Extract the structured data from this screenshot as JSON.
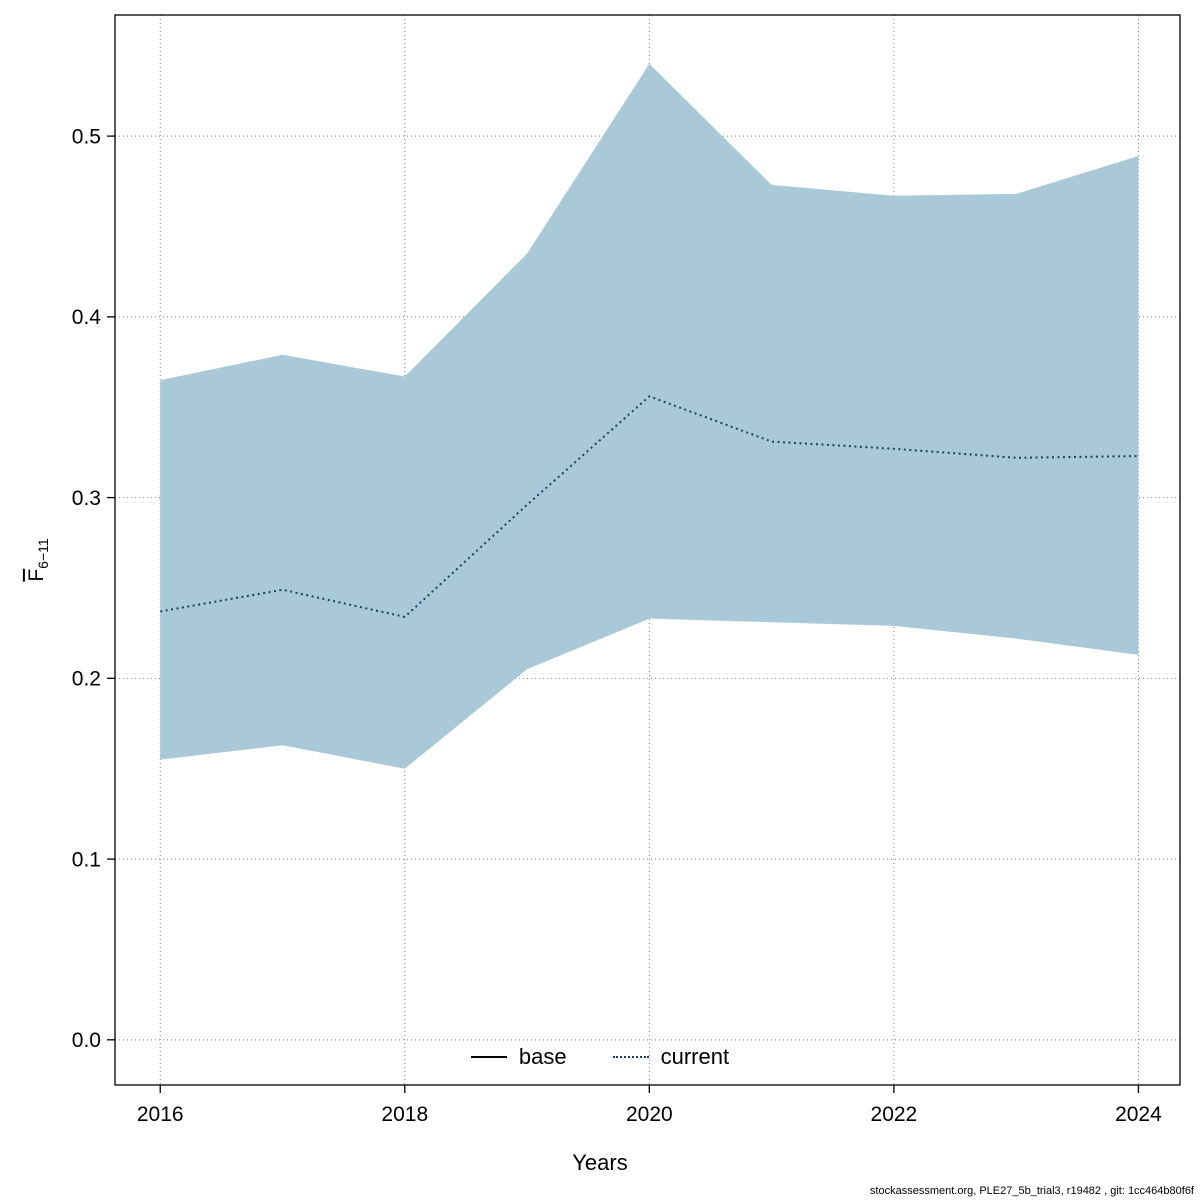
{
  "footer": {
    "source": "stockassessment.org, PLE27_5b_trial3, r19482 , git: 1cc464b80f6f"
  },
  "legend": {
    "items": [
      {
        "label": "base",
        "style": "solid",
        "color": "#000000"
      },
      {
        "label": "current",
        "style": "dotted",
        "color": "#11455e"
      }
    ]
  },
  "chart_data": {
    "type": "area",
    "title": "",
    "xlabel": "Years",
    "ylabel": {
      "base": "F",
      "subscript": "6−11",
      "overline": true
    },
    "x": [
      2016,
      2017,
      2018,
      2019,
      2020,
      2021,
      2022,
      2023,
      2024
    ],
    "series": [
      {
        "name": "current",
        "role": "center-line",
        "line_style": "dotted",
        "color": "#11455e",
        "values": [
          0.237,
          0.249,
          0.234,
          0.296,
          0.356,
          0.331,
          0.327,
          0.322,
          0.323
        ]
      }
    ],
    "band": {
      "name": "confidence-interval",
      "fill": "#a9c9d9",
      "upper": [
        0.365,
        0.379,
        0.367,
        0.435,
        0.54,
        0.473,
        0.467,
        0.468,
        0.489
      ],
      "lower": [
        0.155,
        0.163,
        0.15,
        0.205,
        0.233,
        0.231,
        0.229,
        0.222,
        0.213
      ]
    },
    "x_ticks": [
      2016,
      2018,
      2020,
      2022,
      2024
    ],
    "y_ticks": [
      0.0,
      0.1,
      0.2,
      0.3,
      0.4,
      0.5
    ],
    "xlim": [
      2015.63,
      2024.34
    ],
    "ylim": [
      -0.025,
      0.567
    ],
    "grid": true,
    "grid_color": "#808080",
    "legend_position": "bottom-center"
  }
}
